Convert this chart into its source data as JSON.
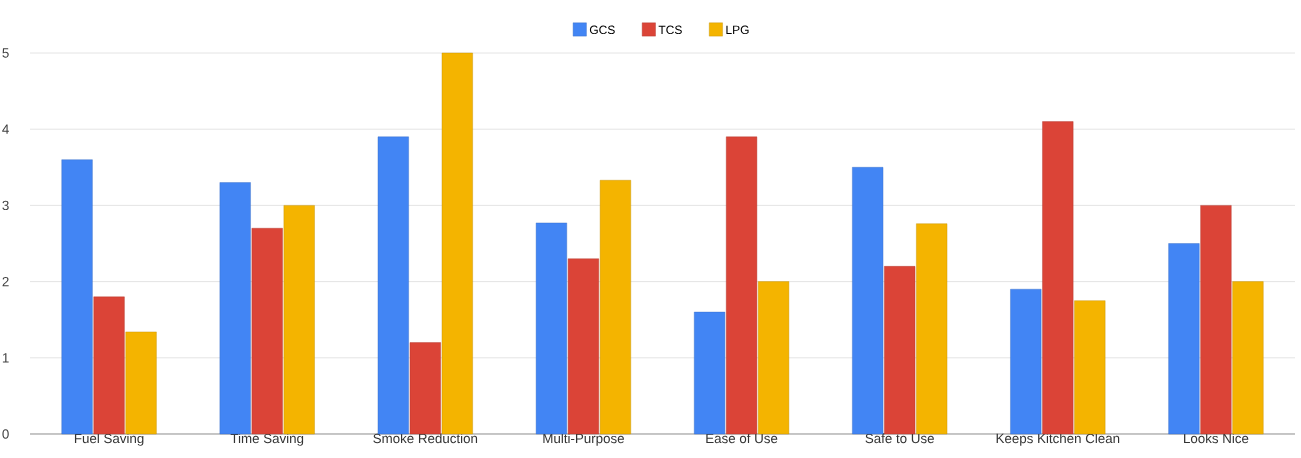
{
  "chart_data": {
    "type": "bar",
    "categories": [
      "Fuel Saving",
      "Time Saving",
      "Smoke Reduction",
      "Multi-Purpose",
      "Ease of Use",
      "Safe to Use",
      "Keeps Kitchen Clean",
      "Looks Nice"
    ],
    "series": [
      {
        "name": "GCS",
        "color": "#4285f4",
        "values": [
          3.6,
          3.3,
          3.9,
          2.77,
          1.6,
          3.5,
          1.9,
          2.5
        ]
      },
      {
        "name": "TCS",
        "color": "#db4437",
        "values": [
          1.8,
          2.7,
          1.2,
          2.3,
          3.9,
          2.2,
          4.1,
          3.0
        ]
      },
      {
        "name": "LPG",
        "color": "#f4b400",
        "values": [
          1.34,
          3.0,
          5.0,
          3.33,
          2.0,
          2.76,
          1.75,
          2.0
        ]
      }
    ],
    "ylim": [
      0,
      5
    ],
    "yticks": [
      0,
      1,
      2,
      3,
      4,
      5
    ],
    "grid": "y",
    "legend": "top"
  }
}
